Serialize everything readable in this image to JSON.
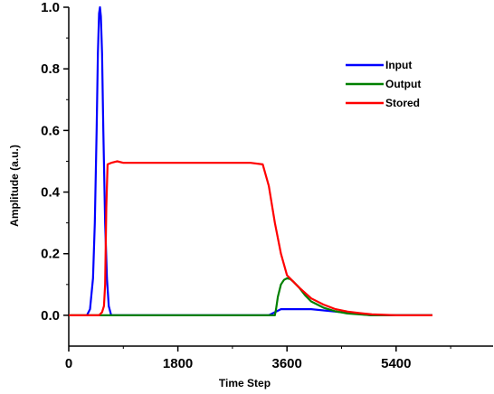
{
  "chart_data": {
    "type": "line",
    "title": "",
    "xlabel": "Time Step",
    "ylabel": "Amplitude (a.u.)",
    "xlim": [
      0,
      7000
    ],
    "ylim": [
      -0.1,
      1.0
    ],
    "xticks": [
      0,
      1800,
      3600,
      5400
    ],
    "xtick_labels": [
      "0",
      "1800",
      "3600",
      "5400"
    ],
    "yticks": [
      0.0,
      0.2,
      0.4,
      0.6,
      0.8,
      1.0
    ],
    "ytick_labels": [
      "0.0",
      "0.2",
      "0.4",
      "0.6",
      "0.8",
      "1.0"
    ],
    "grid": false,
    "legend_position": "top-right",
    "series": [
      {
        "name": "Input",
        "color": "#0000ff",
        "x": [
          300,
          350,
          400,
          430,
          460,
          480,
          500,
          515,
          530,
          550,
          570,
          600,
          630,
          660,
          700,
          800,
          1500,
          3300,
          3500,
          4000,
          5000,
          6000
        ],
        "y": [
          0.0,
          0.02,
          0.12,
          0.3,
          0.6,
          0.85,
          0.98,
          1.0,
          0.97,
          0.85,
          0.6,
          0.3,
          0.12,
          0.03,
          0.0,
          0.0,
          0.0,
          0.0,
          0.02,
          0.02,
          0.0,
          0.0
        ]
      },
      {
        "name": "Output",
        "color": "#008000",
        "x": [
          0,
          3400,
          3420,
          3450,
          3500,
          3550,
          3600,
          3650,
          3700,
          3800,
          3900,
          4000,
          4200,
          4400,
          4600,
          4800,
          5000,
          5400,
          6000
        ],
        "y": [
          0.0,
          0.0,
          0.02,
          0.06,
          0.1,
          0.115,
          0.12,
          0.118,
          0.11,
          0.09,
          0.065,
          0.045,
          0.025,
          0.013,
          0.006,
          0.003,
          0.0,
          0.0,
          0.0
        ]
      },
      {
        "name": "Stored",
        "color": "#ff0000",
        "x": [
          0,
          500,
          550,
          580,
          600,
          620,
          640,
          700,
          800,
          900,
          1200,
          1500,
          2000,
          2500,
          3000,
          3200,
          3300,
          3400,
          3500,
          3600,
          3700,
          3800,
          4000,
          4200,
          4400,
          4600,
          4800,
          5000,
          5400,
          6000
        ],
        "y": [
          0.0,
          0.0,
          0.01,
          0.03,
          0.1,
          0.35,
          0.49,
          0.495,
          0.5,
          0.495,
          0.495,
          0.495,
          0.495,
          0.495,
          0.495,
          0.49,
          0.42,
          0.3,
          0.2,
          0.13,
          0.11,
          0.09,
          0.055,
          0.035,
          0.02,
          0.012,
          0.007,
          0.003,
          0.0,
          0.0
        ]
      }
    ]
  }
}
